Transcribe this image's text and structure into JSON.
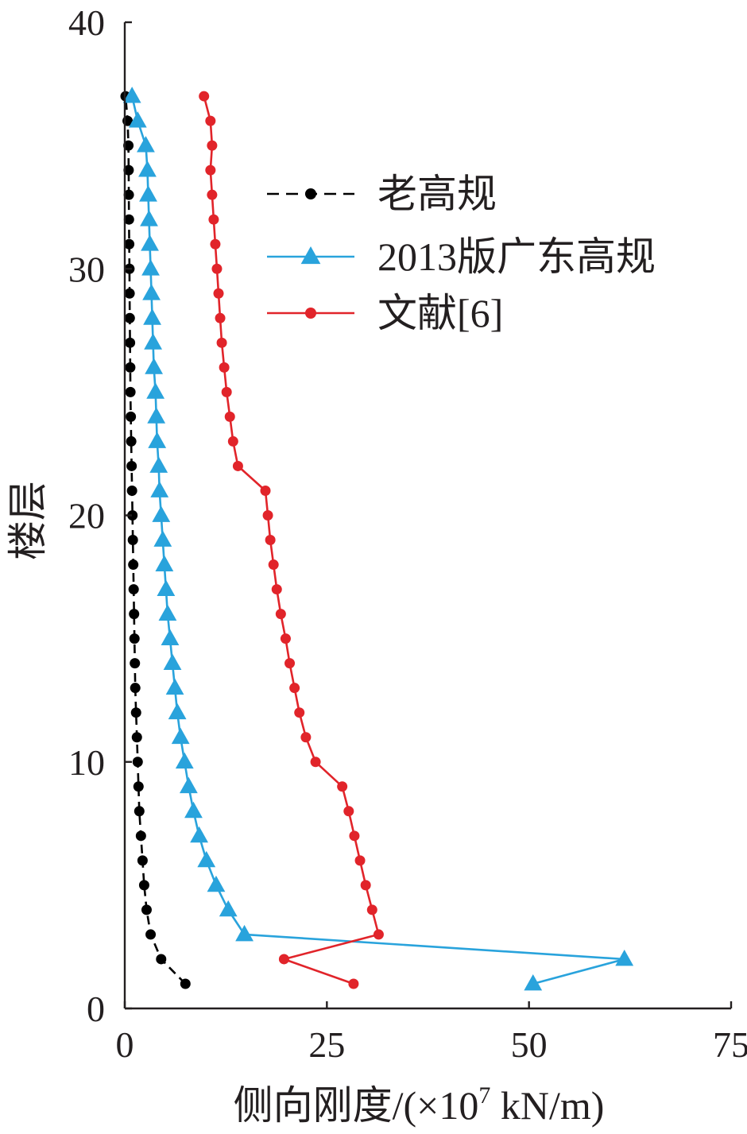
{
  "chart_data": {
    "type": "line",
    "orientation": "horizontal",
    "xlabel": "侧向刚度/(×10",
    "xlabel_exponent": "7",
    "xlabel_unit": " kN/m)",
    "ylabel": "楼层",
    "xlim": [
      0,
      75
    ],
    "ylim": [
      0,
      40
    ],
    "xticks": [
      0,
      25,
      50,
      75
    ],
    "yticks": [
      0,
      10,
      20,
      30,
      40
    ],
    "grid": false,
    "legend_position": "upper-middle",
    "series": [
      {
        "name": "老高规",
        "color": "#000000",
        "line_style": "dashed",
        "marker": "circle",
        "points": [
          [
            7.5,
            1
          ],
          [
            4.5,
            2
          ],
          [
            3.2,
            3
          ],
          [
            2.7,
            4
          ],
          [
            2.4,
            5
          ],
          [
            2.2,
            6
          ],
          [
            2.0,
            7
          ],
          [
            1.8,
            8
          ],
          [
            1.7,
            9
          ],
          [
            1.6,
            10
          ],
          [
            1.5,
            11
          ],
          [
            1.4,
            12
          ],
          [
            1.3,
            13
          ],
          [
            1.25,
            14
          ],
          [
            1.2,
            15
          ],
          [
            1.15,
            16
          ],
          [
            1.1,
            17
          ],
          [
            1.05,
            18
          ],
          [
            1.0,
            19
          ],
          [
            0.95,
            20
          ],
          [
            0.9,
            21
          ],
          [
            0.85,
            22
          ],
          [
            0.8,
            23
          ],
          [
            0.75,
            24
          ],
          [
            0.7,
            25
          ],
          [
            0.68,
            26
          ],
          [
            0.65,
            27
          ],
          [
            0.62,
            28
          ],
          [
            0.6,
            29
          ],
          [
            0.58,
            30
          ],
          [
            0.55,
            31
          ],
          [
            0.52,
            32
          ],
          [
            0.5,
            33
          ],
          [
            0.48,
            34
          ],
          [
            0.45,
            35
          ],
          [
            0.35,
            36
          ],
          [
            0.1,
            37
          ]
        ]
      },
      {
        "name": "2013版广东高规",
        "color": "#29a3dc",
        "line_style": "solid",
        "marker": "triangle",
        "points": [
          [
            50.5,
            1
          ],
          [
            61.8,
            2
          ],
          [
            14.8,
            3
          ],
          [
            12.8,
            4
          ],
          [
            11.3,
            5
          ],
          [
            10.1,
            6
          ],
          [
            9.2,
            7
          ],
          [
            8.5,
            8
          ],
          [
            7.9,
            9
          ],
          [
            7.4,
            10
          ],
          [
            6.9,
            11
          ],
          [
            6.5,
            12
          ],
          [
            6.2,
            13
          ],
          [
            5.9,
            14
          ],
          [
            5.6,
            15
          ],
          [
            5.3,
            16
          ],
          [
            5.1,
            17
          ],
          [
            4.9,
            18
          ],
          [
            4.7,
            19
          ],
          [
            4.5,
            20
          ],
          [
            4.3,
            21
          ],
          [
            4.2,
            22
          ],
          [
            4.0,
            23
          ],
          [
            3.9,
            24
          ],
          [
            3.8,
            25
          ],
          [
            3.6,
            26
          ],
          [
            3.5,
            27
          ],
          [
            3.4,
            28
          ],
          [
            3.3,
            29
          ],
          [
            3.2,
            30
          ],
          [
            3.1,
            31
          ],
          [
            3.0,
            32
          ],
          [
            2.9,
            33
          ],
          [
            2.8,
            34
          ],
          [
            2.6,
            35
          ],
          [
            1.6,
            36
          ],
          [
            0.9,
            37
          ]
        ]
      },
      {
        "name": "文献[6]",
        "color": "#e1242a",
        "line_style": "solid",
        "marker": "circle",
        "points": [
          [
            28.3,
            1
          ],
          [
            19.7,
            2
          ],
          [
            31.4,
            3
          ],
          [
            30.6,
            4
          ],
          [
            29.8,
            5
          ],
          [
            29.1,
            6
          ],
          [
            28.4,
            7
          ],
          [
            27.7,
            8
          ],
          [
            26.9,
            9
          ],
          [
            23.6,
            10
          ],
          [
            22.4,
            11
          ],
          [
            21.6,
            12
          ],
          [
            21.0,
            13
          ],
          [
            20.4,
            14
          ],
          [
            19.9,
            15
          ],
          [
            19.3,
            16
          ],
          [
            18.8,
            17
          ],
          [
            18.4,
            18
          ],
          [
            18.0,
            19
          ],
          [
            17.7,
            20
          ],
          [
            17.4,
            21
          ],
          [
            14.0,
            22
          ],
          [
            13.4,
            23
          ],
          [
            13.0,
            24
          ],
          [
            12.6,
            25
          ],
          [
            12.3,
            26
          ],
          [
            12.0,
            27
          ],
          [
            11.8,
            28
          ],
          [
            11.6,
            29
          ],
          [
            11.4,
            30
          ],
          [
            11.2,
            31
          ],
          [
            11.0,
            32
          ],
          [
            10.8,
            33
          ],
          [
            10.6,
            34
          ],
          [
            10.8,
            35
          ],
          [
            10.6,
            36
          ],
          [
            9.8,
            37
          ]
        ]
      }
    ]
  }
}
